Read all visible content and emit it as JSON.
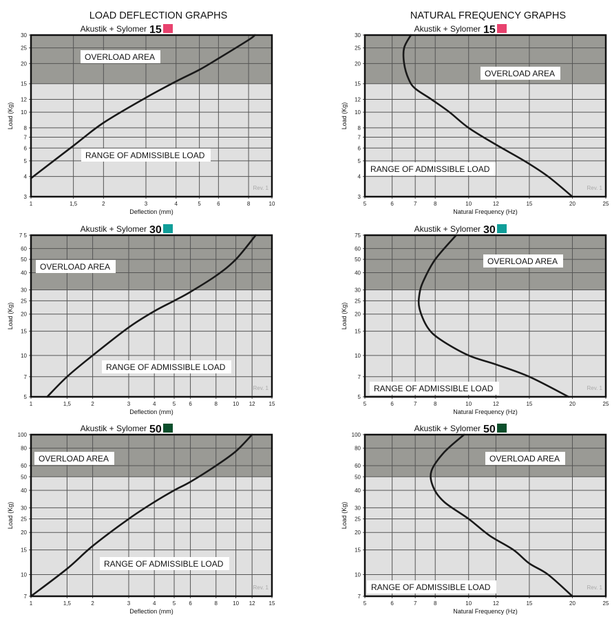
{
  "headers": {
    "left": "LOAD DEFLECTION GRAPHS",
    "right": "NATURAL FREQUENCY GRAPHS"
  },
  "colors": {
    "overload": "#9a9a95",
    "admissible": "#e0e0e0",
    "curve": "#1a1a1a",
    "grid": "#555555",
    "sylomer_15": "#e8426e",
    "sylomer_30": "#109e99",
    "sylomer_50": "#0c4f2c"
  },
  "chart_data": [
    {
      "type": "line",
      "title_prefix": "Akustik + Sylomer",
      "title_number": "15",
      "swatch": "sylomer_15",
      "xlabel": "Deflection (mm)",
      "ylabel": "Load (Kg)",
      "xscale": "log",
      "yscale": "log",
      "grid": true,
      "xlim": [
        1,
        10
      ],
      "ylim": [
        3,
        30
      ],
      "xticks": [
        1,
        1.5,
        2,
        3,
        4,
        5,
        6,
        8,
        10
      ],
      "xtick_labels": [
        "1",
        "1,5",
        "2",
        "3",
        "4",
        "5",
        "6",
        "8",
        "10"
      ],
      "yticks": [
        3,
        4,
        5,
        6,
        7,
        8,
        10,
        12,
        15,
        20,
        25,
        30
      ],
      "ytick_labels": [
        "3",
        "4",
        "5",
        "6",
        "7",
        "8",
        "10",
        "12",
        "15",
        "20",
        "25",
        "30"
      ],
      "overload_from": 15,
      "overload_label": "OVERLOAD AREA",
      "admissible_label": "RANGE OF ADMISSIBLE LOAD",
      "rev": "Rev. 1",
      "x": [
        1,
        1.5,
        2,
        3,
        4,
        5,
        6,
        8,
        8.5
      ],
      "y": [
        3.9,
        6.2,
        8.6,
        12.3,
        15.5,
        18.3,
        21.5,
        28,
        30
      ]
    },
    {
      "type": "line",
      "title_prefix": "Akustik + Sylomer",
      "title_number": "30",
      "swatch": "sylomer_30",
      "xlabel": "Deflection (mm)",
      "ylabel": "Load (Kg)",
      "xscale": "log",
      "yscale": "log",
      "grid": true,
      "xlim": [
        1,
        15
      ],
      "ylim": [
        5,
        75
      ],
      "xticks": [
        1,
        1.5,
        2,
        3,
        4,
        5,
        6,
        8,
        10,
        12,
        15
      ],
      "xtick_labels": [
        "1",
        "1,5",
        "2",
        "3",
        "4",
        "5",
        "6",
        "8",
        "10",
        "12",
        "15"
      ],
      "yticks": [
        5,
        7,
        10,
        15,
        20,
        25,
        30,
        40,
        50,
        60,
        75
      ],
      "ytick_labels": [
        "5",
        "7",
        "10",
        "15",
        "20",
        "25",
        "30",
        "40",
        "50",
        "60",
        "7 5"
      ],
      "overload_from": 30,
      "overload_label": "OVERLOAD AREA",
      "admissible_label": "RANGE OF ADMISSIBLE LOAD",
      "rev": "Rev. 1",
      "x": [
        1.2,
        1.5,
        2,
        3,
        4,
        5,
        6,
        8,
        10,
        12.5
      ],
      "y": [
        5,
        7,
        10,
        16,
        21,
        25,
        29,
        38,
        50,
        75
      ]
    },
    {
      "type": "line",
      "title_prefix": "Akustik + Sylomer",
      "title_number": "50",
      "swatch": "sylomer_50",
      "xlabel": "Deflection (mm)",
      "ylabel": "Load (Kg)",
      "xscale": "log",
      "yscale": "log",
      "grid": true,
      "xlim": [
        1,
        15
      ],
      "ylim": [
        7,
        100
      ],
      "xticks": [
        1,
        1.5,
        2,
        3,
        4,
        5,
        6,
        8,
        10,
        12,
        15
      ],
      "xtick_labels": [
        "1",
        "1,5",
        "2",
        "3",
        "4",
        "5",
        "6",
        "8",
        "10",
        "12",
        "15"
      ],
      "yticks": [
        7,
        10,
        15,
        20,
        25,
        30,
        40,
        50,
        60,
        80,
        100
      ],
      "ytick_labels": [
        "7",
        "10",
        "15",
        "20",
        "25",
        "30",
        "40",
        "50",
        "60",
        "80",
        "100"
      ],
      "overload_from": 50,
      "overload_label": "OVERLOAD AREA",
      "admissible_label": "RANGE OF ADMISSIBLE LOAD",
      "rev": "Rev. 1",
      "x": [
        1,
        1.5,
        2,
        3,
        4,
        5,
        6,
        8,
        10,
        12
      ],
      "y": [
        7,
        11,
        16,
        25,
        33,
        40,
        46,
        60,
        76,
        100
      ]
    },
    {
      "type": "line",
      "title_prefix": "Akustik + Sylomer",
      "title_number": "15",
      "swatch": "sylomer_15",
      "xlabel": "Natural Frequency (Hz)",
      "ylabel": "Load (Kg)",
      "xscale": "log",
      "yscale": "log",
      "grid": true,
      "xlim": [
        5,
        25
      ],
      "ylim": [
        3,
        30
      ],
      "xticks": [
        5,
        6,
        7,
        8,
        10,
        12,
        15,
        20,
        25
      ],
      "xtick_labels": [
        "5",
        "6",
        "7",
        "8",
        "10",
        "12",
        "15",
        "20",
        "25"
      ],
      "yticks": [
        3,
        4,
        5,
        6,
        7,
        8,
        10,
        12,
        15,
        20,
        25,
        30
      ],
      "ytick_labels": [
        "3",
        "4",
        "5",
        "6",
        "7",
        "8",
        "10",
        "12",
        "15",
        "20",
        "25",
        "30"
      ],
      "overload_from": 15,
      "overload_label": "OVERLOAD AREA",
      "admissible_label": "RANGE OF ADMISSIBLE LOAD",
      "rev": "Rev. 1",
      "x": [
        6.8,
        6.5,
        6.5,
        6.7,
        7.0,
        7.8,
        8.8,
        10,
        12,
        14.5,
        17,
        20
      ],
      "y": [
        30,
        25,
        20,
        16,
        14,
        12,
        10,
        8,
        6.3,
        5,
        4,
        3
      ]
    },
    {
      "type": "line",
      "title_prefix": "Akustik + Sylomer",
      "title_number": "30",
      "swatch": "sylomer_30",
      "xlabel": "Natural Frequency (Hz)",
      "ylabel": "Load (Kg)",
      "xscale": "log",
      "yscale": "log",
      "grid": true,
      "xlim": [
        5,
        25
      ],
      "ylim": [
        5,
        75
      ],
      "xticks": [
        5,
        6,
        7,
        8,
        10,
        12,
        15,
        20,
        25
      ],
      "xtick_labels": [
        "5",
        "6",
        "7",
        "8",
        "10",
        "12",
        "15",
        "20",
        "25"
      ],
      "yticks": [
        5,
        7,
        10,
        15,
        20,
        25,
        30,
        40,
        50,
        60,
        75
      ],
      "ytick_labels": [
        "5",
        "7",
        "10",
        "15",
        "20",
        "25",
        "30",
        "40",
        "50",
        "60",
        "75"
      ],
      "overload_from": 30,
      "overload_label": "OVERLOAD AREA",
      "admissible_label": "RANGE OF ADMISSIBLE LOAD",
      "rev": "Rev. 1",
      "x": [
        9.2,
        8.0,
        7.4,
        7.2,
        7.2,
        7.6,
        8.3,
        10,
        12,
        15,
        19.5
      ],
      "y": [
        75,
        50,
        35,
        28,
        22,
        16,
        13,
        10,
        8.6,
        7,
        5
      ]
    },
    {
      "type": "line",
      "title_prefix": "Akustik + Sylomer",
      "title_number": "50",
      "swatch": "sylomer_50",
      "xlabel": "Natural Frequency (Hz)",
      "ylabel": "Load (Kg)",
      "xscale": "log",
      "yscale": "log",
      "grid": true,
      "xlim": [
        5,
        25
      ],
      "ylim": [
        7,
        100
      ],
      "xticks": [
        5,
        6,
        7,
        8,
        10,
        12,
        15,
        20,
        25
      ],
      "xtick_labels": [
        "5",
        "6",
        "7",
        "8",
        "10",
        "12",
        "15",
        "20",
        "25"
      ],
      "yticks": [
        7,
        10,
        15,
        20,
        25,
        30,
        40,
        50,
        60,
        80,
        100
      ],
      "ytick_labels": [
        "7",
        "10",
        "15",
        "20",
        "25",
        "30",
        "40",
        "50",
        "60",
        "80",
        "100"
      ],
      "overload_from": 50,
      "overload_label": "OVERLOAD AREA",
      "admissible_label": "RANGE OF ADMISSIBLE LOAD",
      "rev": "Rev. 1",
      "x": [
        9.7,
        8.5,
        7.8,
        7.9,
        8.5,
        10,
        11.5,
        13.5,
        15,
        17,
        20
      ],
      "y": [
        100,
        75,
        55,
        42,
        33,
        25,
        19,
        15,
        12,
        10,
        7
      ]
    }
  ]
}
